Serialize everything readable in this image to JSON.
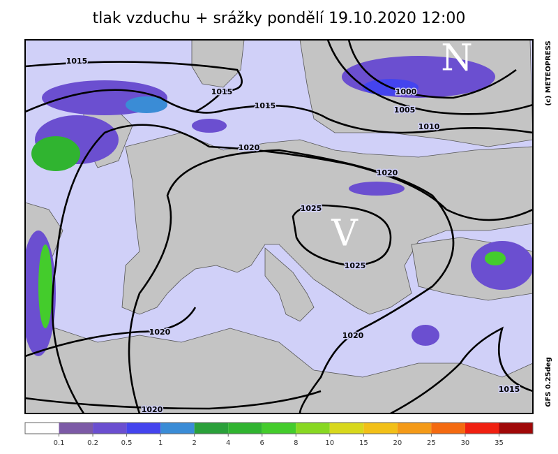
{
  "title": "tlak vzduchu + srážky pondělí 19.10.2020 12:00",
  "map": {
    "isobar_labels": [
      "1015",
      "1015",
      "1015",
      "1020",
      "1000",
      "1005",
      "1010",
      "1020",
      "1025",
      "1025",
      "1020",
      "1020",
      "1020",
      "1015"
    ],
    "pressure_centers": [
      "N",
      "V"
    ],
    "credits": [
      "(c) METEOPRESS",
      "GFS 0.25deg"
    ]
  },
  "legend": {
    "colors": [
      "#ffffff",
      "#7c5aa6",
      "#6b4fd0",
      "#4444ee",
      "#3a8cd6",
      "#2aa03a",
      "#30b430",
      "#44cc2c",
      "#88d822",
      "#d8d81c",
      "#f2c018",
      "#f49a18",
      "#f46a10",
      "#f02010",
      "#a00808"
    ],
    "ticks": [
      0.1,
      0.2,
      0.5,
      1,
      2,
      4,
      6,
      8,
      10,
      15,
      20,
      25,
      30,
      35
    ]
  }
}
